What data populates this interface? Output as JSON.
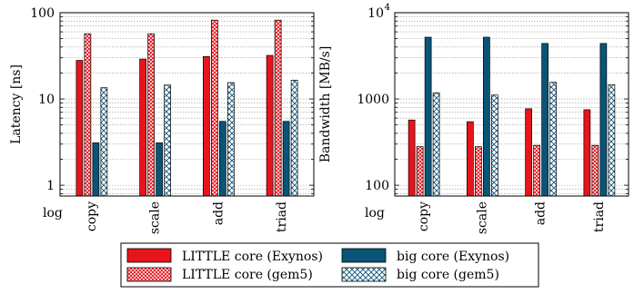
{
  "colors": {
    "little_exynos": "#e8141c",
    "little_gem5": "#e8141c",
    "big_exynos": "#0a5478",
    "big_gem5": "#0a5478"
  },
  "legend": {
    "placement": "bottom-center",
    "entries": [
      {
        "key": "little_exynos",
        "label": "LITTLE core (Exynos)",
        "pattern": "solid"
      },
      {
        "key": "big_exynos",
        "label": "big core (Exynos)",
        "pattern": "solid"
      },
      {
        "key": "little_gem5",
        "label": "LITTLE core (gem5)",
        "pattern": "crosshatch"
      },
      {
        "key": "big_gem5",
        "label": "big core (gem5)",
        "pattern": "crosshatch"
      }
    ]
  },
  "chart_data": [
    {
      "type": "bar",
      "panel": "latency",
      "title": "",
      "xlabel": "",
      "ylabel": "Latency [ns]",
      "yscale": "log",
      "yscale_label": "log",
      "ylim": [
        0.75,
        100
      ],
      "yticks": [
        {
          "value": 1,
          "label": "1"
        },
        {
          "value": 10,
          "label": "10"
        },
        {
          "value": 100,
          "label": "100"
        }
      ],
      "grid": "horizontal-dotted",
      "categories": [
        "copy",
        "scale",
        "add",
        "triad"
      ],
      "series": [
        {
          "key": "little_exynos",
          "values": [
            28,
            29,
            31,
            32
          ]
        },
        {
          "key": "little_gem5",
          "values": [
            57,
            57,
            82,
            82
          ]
        },
        {
          "key": "big_exynos",
          "values": [
            3.1,
            3.1,
            5.5,
            5.5
          ]
        },
        {
          "key": "big_gem5",
          "values": [
            13.5,
            14.5,
            15.5,
            16.5
          ]
        }
      ]
    },
    {
      "type": "bar",
      "panel": "bandwidth",
      "title": "",
      "xlabel": "",
      "ylabel": "Bandwidth [MB/s]",
      "yscale": "log",
      "yscale_label": "log",
      "ylim": [
        75,
        10000
      ],
      "yticks": [
        {
          "value": 100,
          "label": "100"
        },
        {
          "value": 1000,
          "label": "1000"
        },
        {
          "value": 10000,
          "label": "10",
          "exponent": "4"
        }
      ],
      "grid": "horizontal-dotted",
      "categories": [
        "copy",
        "scale",
        "add",
        "triad"
      ],
      "series": [
        {
          "key": "little_exynos",
          "values": [
            570,
            545,
            770,
            750
          ]
        },
        {
          "key": "little_gem5",
          "values": [
            280,
            280,
            290,
            290
          ]
        },
        {
          "key": "big_exynos",
          "values": [
            5200,
            5200,
            4400,
            4400
          ]
        },
        {
          "key": "big_gem5",
          "values": [
            1180,
            1110,
            1560,
            1460
          ]
        }
      ]
    }
  ]
}
